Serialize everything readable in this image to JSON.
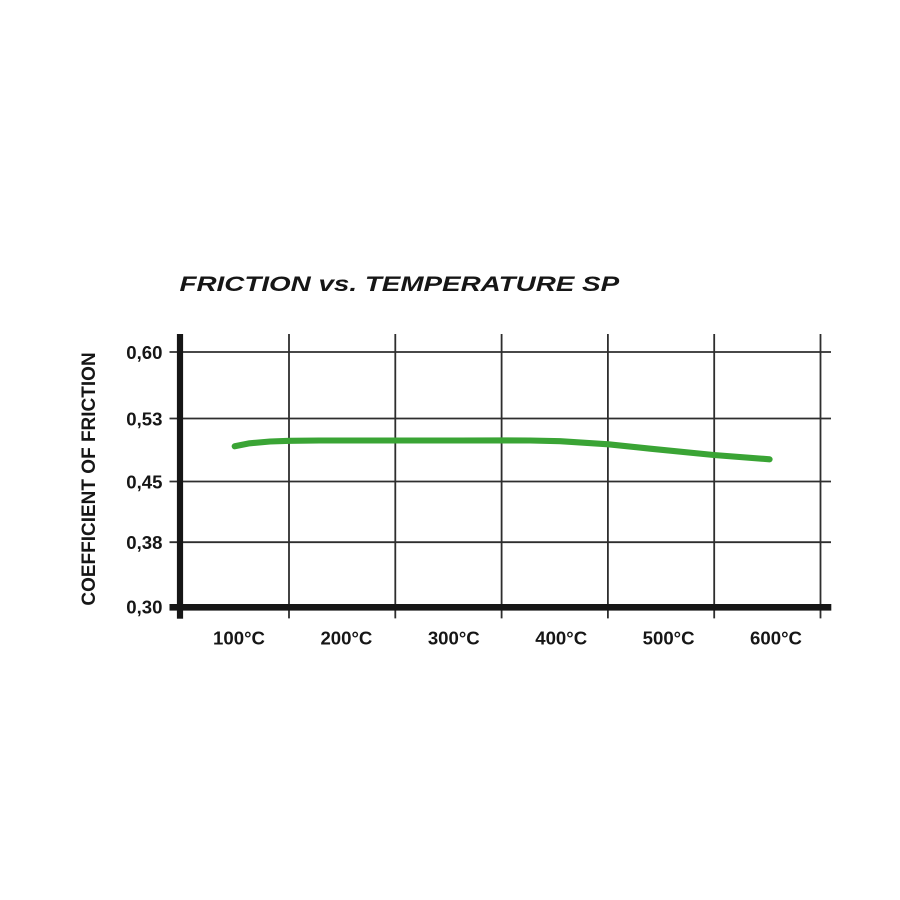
{
  "chart_data": {
    "type": "line",
    "title": "FRICTION vs. TEMPERATURE SP",
    "ylabel": "COEFFICIENT OF FRICTION",
    "xlabel": "",
    "x_unit": "°C",
    "x_tick_labels": [
      "100°C",
      "200°C",
      "300°C",
      "400°C",
      "500°C",
      "600°C"
    ],
    "x_tick_values": [
      100,
      200,
      300,
      400,
      500,
      600
    ],
    "y_tick_labels": [
      "0,60",
      "0,53",
      "0,45",
      "0,38",
      "0,30"
    ],
    "y_tick_values": [
      0.6,
      0.53,
      0.45,
      0.38,
      0.3
    ],
    "ylim": [
      0.3,
      0.62
    ],
    "xlim": [
      45,
      655
    ],
    "grid": true,
    "legend": false,
    "series": [
      {
        "name": "SP",
        "color": "#3aa435",
        "x": [
          96,
          110,
          129,
          147,
          175,
          245,
          306,
          345,
          371,
          399,
          444,
          483,
          542,
          594
        ],
        "y": [
          0.4947,
          0.4985,
          0.5008,
          0.5017,
          0.5021,
          0.5021,
          0.5021,
          0.5022,
          0.5021,
          0.5012,
          0.4972,
          0.4916,
          0.4836,
          0.4782
        ]
      }
    ],
    "colors": {
      "axis": "#161616",
      "grid": "#2e2e2e",
      "text": "#161616",
      "background": "#ffffff"
    }
  }
}
